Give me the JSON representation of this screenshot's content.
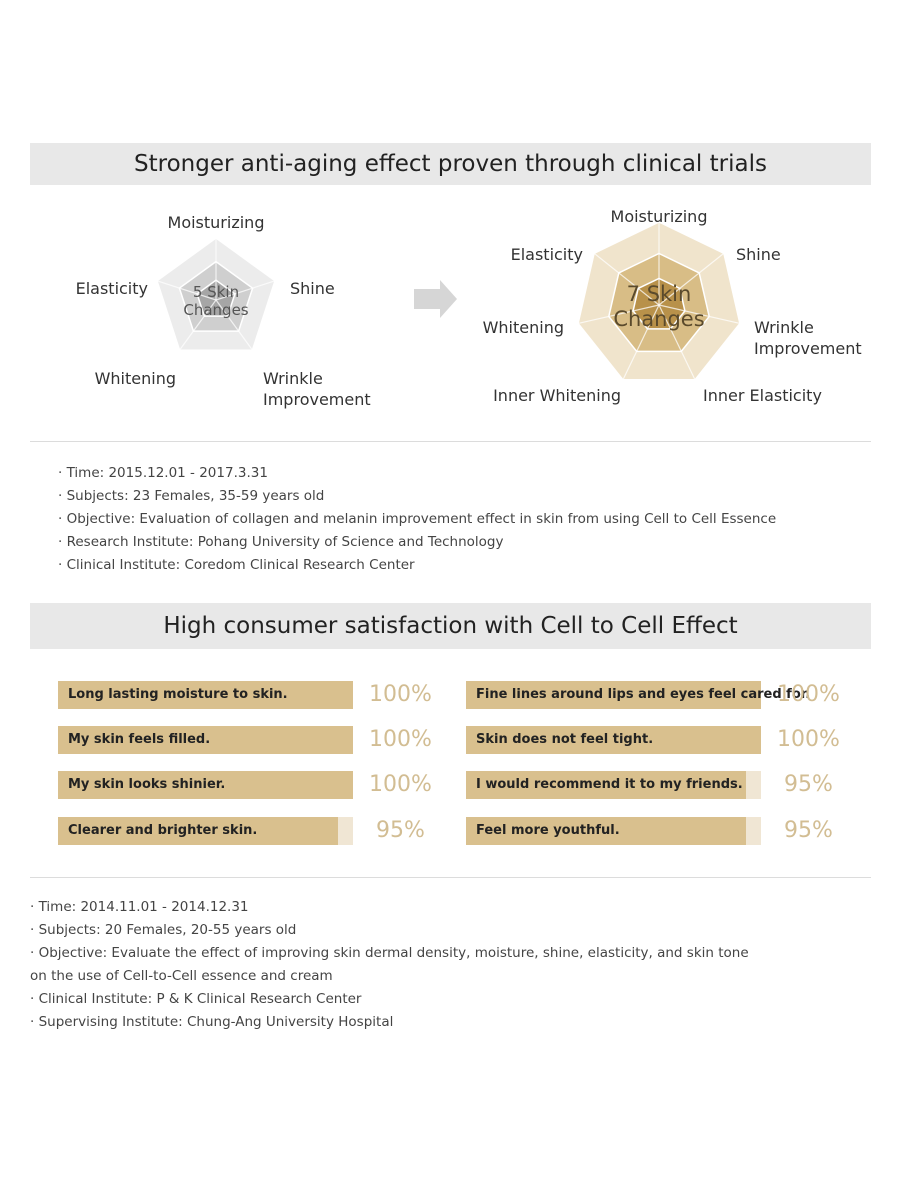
{
  "section1": {
    "title": "Stronger anti-aging effect proven through clinical trials",
    "notes": [
      "· Time: 2015.12.01 - 2017.3.31",
      "· Subjects: 23 Females, 35-59 years old",
      "· Objective: Evaluation of collagen and melanin improvement effect in skin from using Cell to Cell Essence",
      "· Research Institute: Pohang University of Science and Technology",
      "· Clinical Institute: Coredom Clinical Research Center"
    ]
  },
  "section2": {
    "title": "High consumer satisfaction with Cell to Cell Effect",
    "notes": [
      "· Time: 2014.11.01 - 2014.12.31",
      "· Subjects: 20 Females, 20-55 years old",
      "· Objective: Evaluate the effect of improving skin dermal density, moisture, shine, elasticity, and skin tone on the use of Cell-to-Cell essence and cream",
      "· Clinical Institute: P & K Clinical Research Center",
      "· Supervising Institute: Chung-Ang University Hospital"
    ]
  },
  "colors": {
    "banner_bg": "#e8e8e8",
    "bar_fill": "#d9c08e",
    "bar_track": "#f0e6d4",
    "percent_text": "#d2bd93",
    "gray_outer": "#ececec",
    "gray_mid": "#cfcfcf",
    "gray_inner": "#a6a6a6",
    "gold_outer": "#f0e4cc",
    "gold_mid": "#d8bd86",
    "gold_inner": "#b8914a",
    "arrow": "#d6d6d6"
  },
  "chart_data": [
    {
      "type": "radar",
      "center_text": [
        "5 Skin",
        "Changes"
      ],
      "axes": [
        "Moisturizing",
        "Shine",
        "Wrinkle Improvement",
        "Whitening",
        "Elasticity"
      ]
    },
    {
      "type": "radar",
      "center_text": [
        "7 Skin",
        "Changes"
      ],
      "axes": [
        "Moisturizing",
        "Shine",
        "Wrinkle Improvement",
        "Inner Elasticity",
        "Inner Whitening",
        "Whitening",
        "Elasticity"
      ]
    },
    {
      "type": "bar",
      "unit": "%",
      "categories": [
        "Long lasting moisture to skin.",
        "My skin feels filled.",
        "My skin looks shinier.",
        "Clearer and brighter skin.",
        "Fine lines around lips and eyes feel cared for.",
        "Skin does not feel tight.",
        "I would recommend it to my friends.",
        "Feel more youthful."
      ],
      "values": [
        100,
        100,
        100,
        95,
        100,
        100,
        95,
        95
      ],
      "value_labels": [
        "100%",
        "100%",
        "100%",
        "95%",
        "100%",
        "100%",
        "95%",
        "95%"
      ]
    }
  ]
}
